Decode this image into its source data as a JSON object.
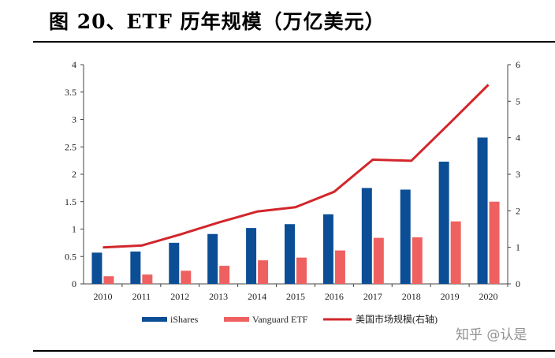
{
  "title": "图 20、ETF 历年规模（万亿美元）",
  "watermark": "知乎 @认是",
  "chart_data": {
    "type": "bar",
    "categories": [
      "2010",
      "2011",
      "2012",
      "2013",
      "2014",
      "2015",
      "2016",
      "2017",
      "2018",
      "2019",
      "2020"
    ],
    "series": [
      {
        "name": "iShares",
        "type": "bar",
        "axis": "left",
        "color": "#0b4e96",
        "values": [
          0.57,
          0.59,
          0.75,
          0.91,
          1.02,
          1.09,
          1.27,
          1.75,
          1.72,
          2.23,
          2.67
        ]
      },
      {
        "name": "Vanguard ETF",
        "type": "bar",
        "axis": "left",
        "color": "#ee6160",
        "values": [
          0.14,
          0.17,
          0.24,
          0.33,
          0.43,
          0.48,
          0.61,
          0.84,
          0.85,
          1.14,
          1.5
        ]
      },
      {
        "name": "美国市场规模(右轴)",
        "type": "line",
        "axis": "right",
        "color": "#d2262b",
        "values": [
          1.0,
          1.05,
          1.35,
          1.68,
          1.98,
          2.1,
          2.52,
          3.4,
          3.37,
          4.4,
          5.45
        ]
      }
    ],
    "y_left": {
      "min": 0,
      "max": 4,
      "ticks": [
        "0",
        "0.5",
        "1",
        "1.5",
        "2",
        "2.5",
        "3",
        "3.5",
        "4"
      ]
    },
    "y_right": {
      "min": 0,
      "max": 6,
      "ticks": [
        "0",
        "1",
        "2",
        "3",
        "4",
        "5",
        "6"
      ]
    },
    "legend_position": "bottom",
    "grid": false
  }
}
